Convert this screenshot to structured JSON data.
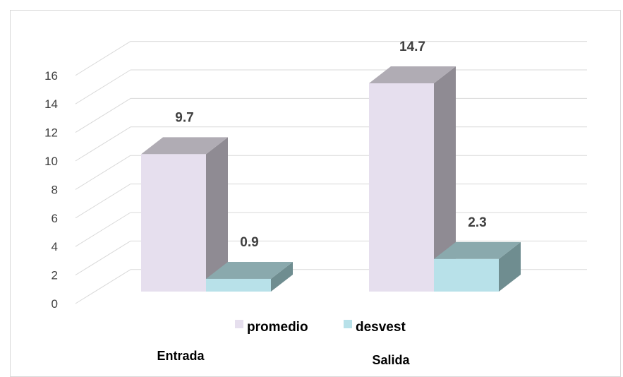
{
  "chart_data": {
    "type": "bar",
    "style": "3d-clustered-column",
    "categories": [
      "Entrada",
      "Salida"
    ],
    "series": [
      {
        "name": "promedio",
        "values": [
          9.7,
          14.7
        ],
        "color": "#e6dfee",
        "side_color": "#8f8b93",
        "top_color": "#b0acb4"
      },
      {
        "name": "desvest",
        "values": [
          0.9,
          2.3
        ],
        "color": "#b8e1e9",
        "side_color": "#6f8d90",
        "top_color": "#8aa9ad"
      }
    ],
    "data_labels": [
      "9.7",
      "14.7",
      "0.9",
      "2.3"
    ],
    "y_ticks": [
      "0",
      "2",
      "4",
      "6",
      "8",
      "10",
      "12",
      "14",
      "16"
    ],
    "ylim": [
      0,
      16
    ],
    "grid": true,
    "legend_placement": "bottom-center",
    "title": "",
    "xlabel": "",
    "ylabel": ""
  }
}
